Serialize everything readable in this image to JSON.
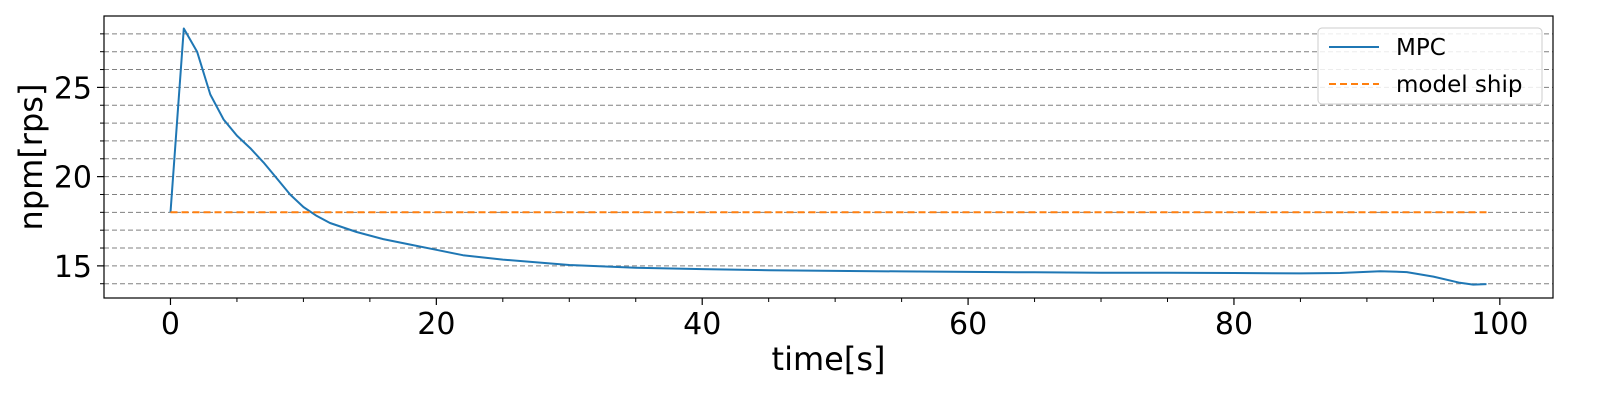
{
  "chart_data": {
    "type": "line",
    "title": "",
    "xlabel": "time[s]",
    "ylabel": "npm[rps]",
    "xlim": [
      -5,
      104
    ],
    "ylim": [
      13.2,
      29.0
    ],
    "xticks": [
      0,
      20,
      40,
      60,
      80,
      100
    ],
    "xtick_labels": [
      "0",
      "20",
      "40",
      "60",
      "80",
      "100"
    ],
    "x_minor_ticks": [
      5,
      10,
      15,
      25,
      30,
      35,
      45,
      50,
      55,
      65,
      70,
      75,
      85,
      90,
      95
    ],
    "yticks": [
      15,
      20,
      25
    ],
    "ytick_labels": [
      "15",
      "20",
      "25"
    ],
    "y_minor_ticks": [
      14,
      16,
      17,
      18,
      19,
      21,
      22,
      23,
      24,
      26,
      27,
      28
    ],
    "grid": "horizontal dashed at every 1 rps",
    "legend_position": "top-right",
    "colors": {
      "mpc": "#1f77b4",
      "model_ship": "#ff7f0e",
      "grid": "#808080"
    },
    "series": [
      {
        "name": "MPC",
        "style": "solid",
        "x": [
          0,
          1,
          2,
          3,
          4,
          5,
          6,
          7,
          8,
          9,
          10,
          11,
          12,
          14,
          16,
          18,
          20,
          22,
          25,
          30,
          35,
          40,
          45,
          50,
          55,
          60,
          65,
          70,
          75,
          80,
          85,
          88,
          91,
          93,
          95,
          97,
          98,
          99
        ],
        "y": [
          18.0,
          28.3,
          27.0,
          24.6,
          23.2,
          22.3,
          21.6,
          20.8,
          19.9,
          19.0,
          18.3,
          17.8,
          17.4,
          16.9,
          16.5,
          16.2,
          15.9,
          15.6,
          15.35,
          15.05,
          14.9,
          14.82,
          14.76,
          14.72,
          14.69,
          14.66,
          14.64,
          14.62,
          14.61,
          14.6,
          14.58,
          14.6,
          14.7,
          14.65,
          14.4,
          14.05,
          13.95,
          13.98
        ]
      },
      {
        "name": "model ship",
        "style": "dashed",
        "x": [
          0,
          99
        ],
        "y": [
          18.0,
          18.0
        ]
      }
    ]
  }
}
